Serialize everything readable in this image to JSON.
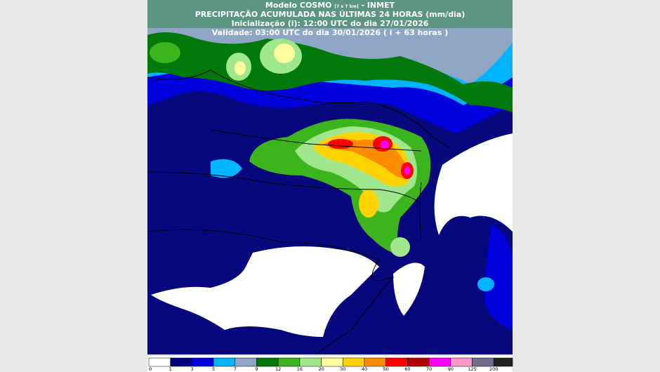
{
  "header": {
    "title_model": "Modelo COSMO",
    "title_resolution": "[7 x 7 km]",
    "title_source": "- INMET",
    "subtitle": "PRECIPITAÇÃO ACUMULADA NAS ÚLTIMAS 24 HORAS (mm/dia)",
    "init": "Inicialização (i): 12:00 UTC do dia 27/01/2026",
    "valid": "Validade: 03:00 UTC do dia 30/01/2026 ( i + 63 horas )"
  },
  "legend": {
    "ticks": [
      0,
      1,
      3,
      5,
      7,
      9,
      12,
      16,
      20,
      30,
      40,
      50,
      60,
      70,
      90,
      125,
      200
    ],
    "colors": [
      "#ffffff",
      "#00007d",
      "#0000dc",
      "#00b4ff",
      "#8ea6c4",
      "#00780a",
      "#3cb41e",
      "#a0e68c",
      "#ffffa0",
      "#ffd200",
      "#ff8c00",
      "#ff0000",
      "#b40000",
      "#ff00ff",
      "#ff96c8",
      "#6e6e8c",
      "#202020"
    ]
  }
}
